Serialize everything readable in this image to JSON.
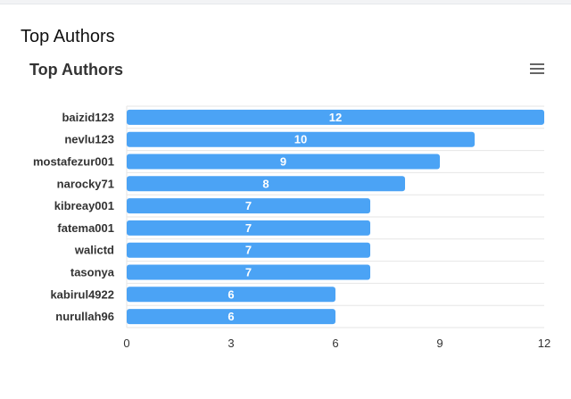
{
  "page": {
    "title": "Top Authors"
  },
  "chart_data": {
    "type": "bar",
    "orientation": "horizontal",
    "title": "Top Authors",
    "categories": [
      "baizid123",
      "nevlu123",
      "mostafezur001",
      "narocky71",
      "kibreay001",
      "fatema001",
      "walictd",
      "tasonya",
      "kabirul4922",
      "nurullah96"
    ],
    "values": [
      12,
      10,
      9,
      8,
      7,
      7,
      7,
      7,
      6,
      6
    ],
    "xlim": [
      0,
      12
    ],
    "xticks": [
      0,
      3,
      6,
      9,
      12
    ],
    "bar_color": "#4ba3f5",
    "data_labels": true,
    "grid": true,
    "legend": "none"
  },
  "icons": {
    "menu": "hamburger-menu-icon"
  }
}
